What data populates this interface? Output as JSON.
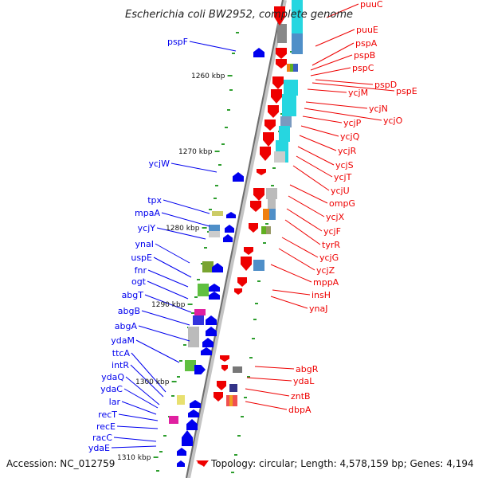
{
  "title": "Escherichia coli BW2952, complete genome",
  "colors": {
    "left_genes": "#0000ee",
    "right_genes": "#ee0000",
    "backbone": "#8a8a8a",
    "tick": "#2e9e2e"
  },
  "kbp_labels": [
    "1260 kbp",
    "1270 kbp",
    "1280 kbp",
    "1290 kbp",
    "1300 kbp",
    "1310 kbp"
  ],
  "left_gene_labels": [
    "pspF",
    "ycjW",
    "tpx",
    "mpaA",
    "ycjY",
    "ynaI",
    "uspE",
    "fnr",
    "ogt",
    "abgT",
    "abgB",
    "abgA",
    "ydaM",
    "ttcA",
    "intR",
    "ydaQ",
    "ydaC",
    "lar",
    "recT",
    "recE",
    "racC",
    "ydaE"
  ],
  "right_gene_labels": [
    "puuC",
    "puuE",
    "pspA",
    "pspB",
    "pspC",
    "pspD",
    "pspE",
    "ycjM",
    "ycjN",
    "ycjO",
    "ycjP",
    "ycjQ",
    "ycjR",
    "ycjS",
    "ycjT",
    "ycjU",
    "ompG",
    "ycjX",
    "ycjF",
    "tyrR",
    "ycjG",
    "ycjZ",
    "mppA",
    "insH",
    "ynaJ",
    "abgR",
    "ydaL",
    "zntB",
    "dbpA"
  ],
  "footer": {
    "accession": "Accession: NC_012759",
    "info": "Topology: circular; Length: 4,578,159 bp; Genes: 4,194"
  }
}
